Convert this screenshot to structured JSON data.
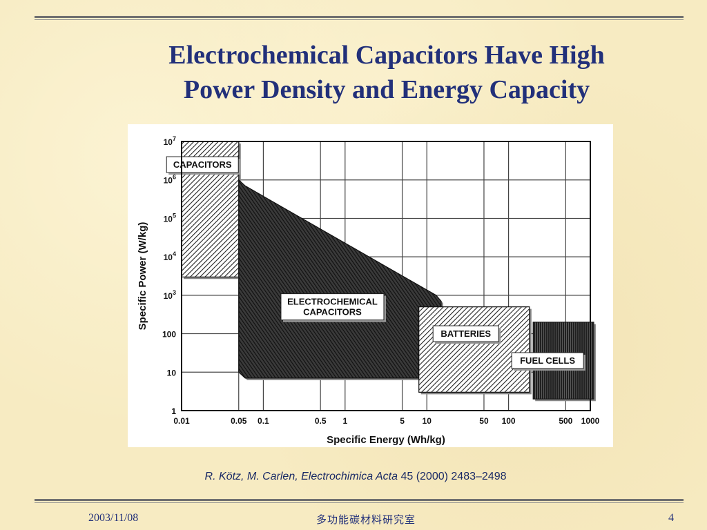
{
  "slide": {
    "title_line1": "Electrochemical Capacitors Have High",
    "title_line2": "Power Density and Energy Capacity",
    "citation_authors": "R. Kötz, M. Carlen, ",
    "citation_journal": "Electrochimica Acta",
    "citation_ref": " 45 (2000) 2483–2498",
    "footer_date": "2003/11/08",
    "footer_lab": "多功能碳材料研究室",
    "page_number": "4"
  },
  "colors": {
    "title": "#22307a",
    "background": "#f7ebc2",
    "region_fill": "#2a2a2a"
  },
  "chart_data": {
    "type": "area",
    "title": "",
    "xlabel": "Specific Energy (Wh/kg)",
    "ylabel": "Specific Power (W/kg)",
    "x_scale": "log",
    "y_scale": "log",
    "xlim": [
      0.01,
      1000
    ],
    "ylim": [
      1,
      10000000
    ],
    "grid": true,
    "x_ticks": [
      {
        "value": 0.01,
        "label": "0.01"
      },
      {
        "value": 0.05,
        "label": "0.05"
      },
      {
        "value": 0.1,
        "label": "0.1"
      },
      {
        "value": 0.5,
        "label": "0.5"
      },
      {
        "value": 1,
        "label": "1"
      },
      {
        "value": 5,
        "label": "5"
      },
      {
        "value": 10,
        "label": "10"
      },
      {
        "value": 50,
        "label": "50"
      },
      {
        "value": 100,
        "label": "100"
      },
      {
        "value": 500,
        "label": "500"
      },
      {
        "value": 1000,
        "label": "1000"
      }
    ],
    "y_ticks": [
      {
        "value": 1,
        "base": "1",
        "exp": ""
      },
      {
        "value": 10,
        "base": "10",
        "exp": ""
      },
      {
        "value": 100,
        "base": "100",
        "exp": ""
      },
      {
        "value": 1000,
        "base": "10",
        "exp": "3"
      },
      {
        "value": 10000,
        "base": "10",
        "exp": "4"
      },
      {
        "value": 100000,
        "base": "10",
        "exp": "5"
      },
      {
        "value": 1000000,
        "base": "10",
        "exp": "6"
      },
      {
        "value": 10000000,
        "base": "10",
        "exp": "7"
      }
    ],
    "regions": [
      {
        "name": "CAPACITORS",
        "label_lines": [
          "CAPACITORS"
        ],
        "label_at": [
          0.018,
          2500000
        ],
        "pattern": "hatch",
        "polygon": [
          [
            0.01,
            10000000
          ],
          [
            0.05,
            10000000
          ],
          [
            0.05,
            1000000
          ],
          [
            0.05,
            3000
          ],
          [
            0.01,
            3000
          ]
        ]
      },
      {
        "name": "ELECTROCHEMICAL CAPACITORS",
        "label_lines": [
          "ELECTROCHEMICAL",
          "CAPACITORS"
        ],
        "label_at": [
          0.7,
          500
        ],
        "pattern": "dark-hatch",
        "polygon": [
          [
            0.05,
            1000000
          ],
          [
            0.06,
            700000
          ],
          [
            13,
            1000
          ],
          [
            15,
            700
          ],
          [
            15,
            7
          ],
          [
            0.06,
            7
          ],
          [
            0.05,
            10
          ]
        ]
      },
      {
        "name": "BATTERIES",
        "label_lines": [
          "BATTERIES"
        ],
        "label_at": [
          30,
          100
        ],
        "pattern": "hatch",
        "polygon": [
          [
            8,
            500
          ],
          [
            180,
            500
          ],
          [
            180,
            3
          ],
          [
            8,
            3
          ]
        ]
      },
      {
        "name": "FUEL CELLS",
        "label_lines": [
          "FUEL CELLS"
        ],
        "label_at": [
          300,
          20
        ],
        "pattern": "vertical",
        "polygon": [
          [
            200,
            200
          ],
          [
            1100,
            200
          ],
          [
            1100,
            2
          ],
          [
            200,
            2
          ]
        ]
      }
    ]
  }
}
